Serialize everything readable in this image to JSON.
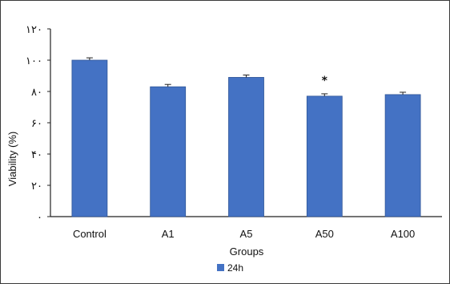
{
  "chart_data": {
    "type": "bar",
    "categories": [
      "Control",
      "A1",
      "A5",
      "A50",
      "A100"
    ],
    "series": [
      {
        "name": "24h",
        "values": [
          100,
          83,
          89,
          77,
          78
        ],
        "errors": [
          1.5,
          1.5,
          1.5,
          1.5,
          1.5
        ],
        "color": "#4472C4"
      }
    ],
    "yticks": [
      0,
      20,
      40,
      60,
      80,
      100,
      120
    ],
    "ytick_labels": [
      "٠",
      "٢٠",
      "۴٠",
      "۶٠",
      "٨٠",
      "١٠٠",
      "١٢٠"
    ],
    "ylim": [
      0,
      120
    ],
    "xlabel": "Groups",
    "ylabel": "Viability (%)",
    "annotations": [
      {
        "category": "A50",
        "text": "*"
      }
    ],
    "legend_position": "bottom",
    "grid": false
  }
}
